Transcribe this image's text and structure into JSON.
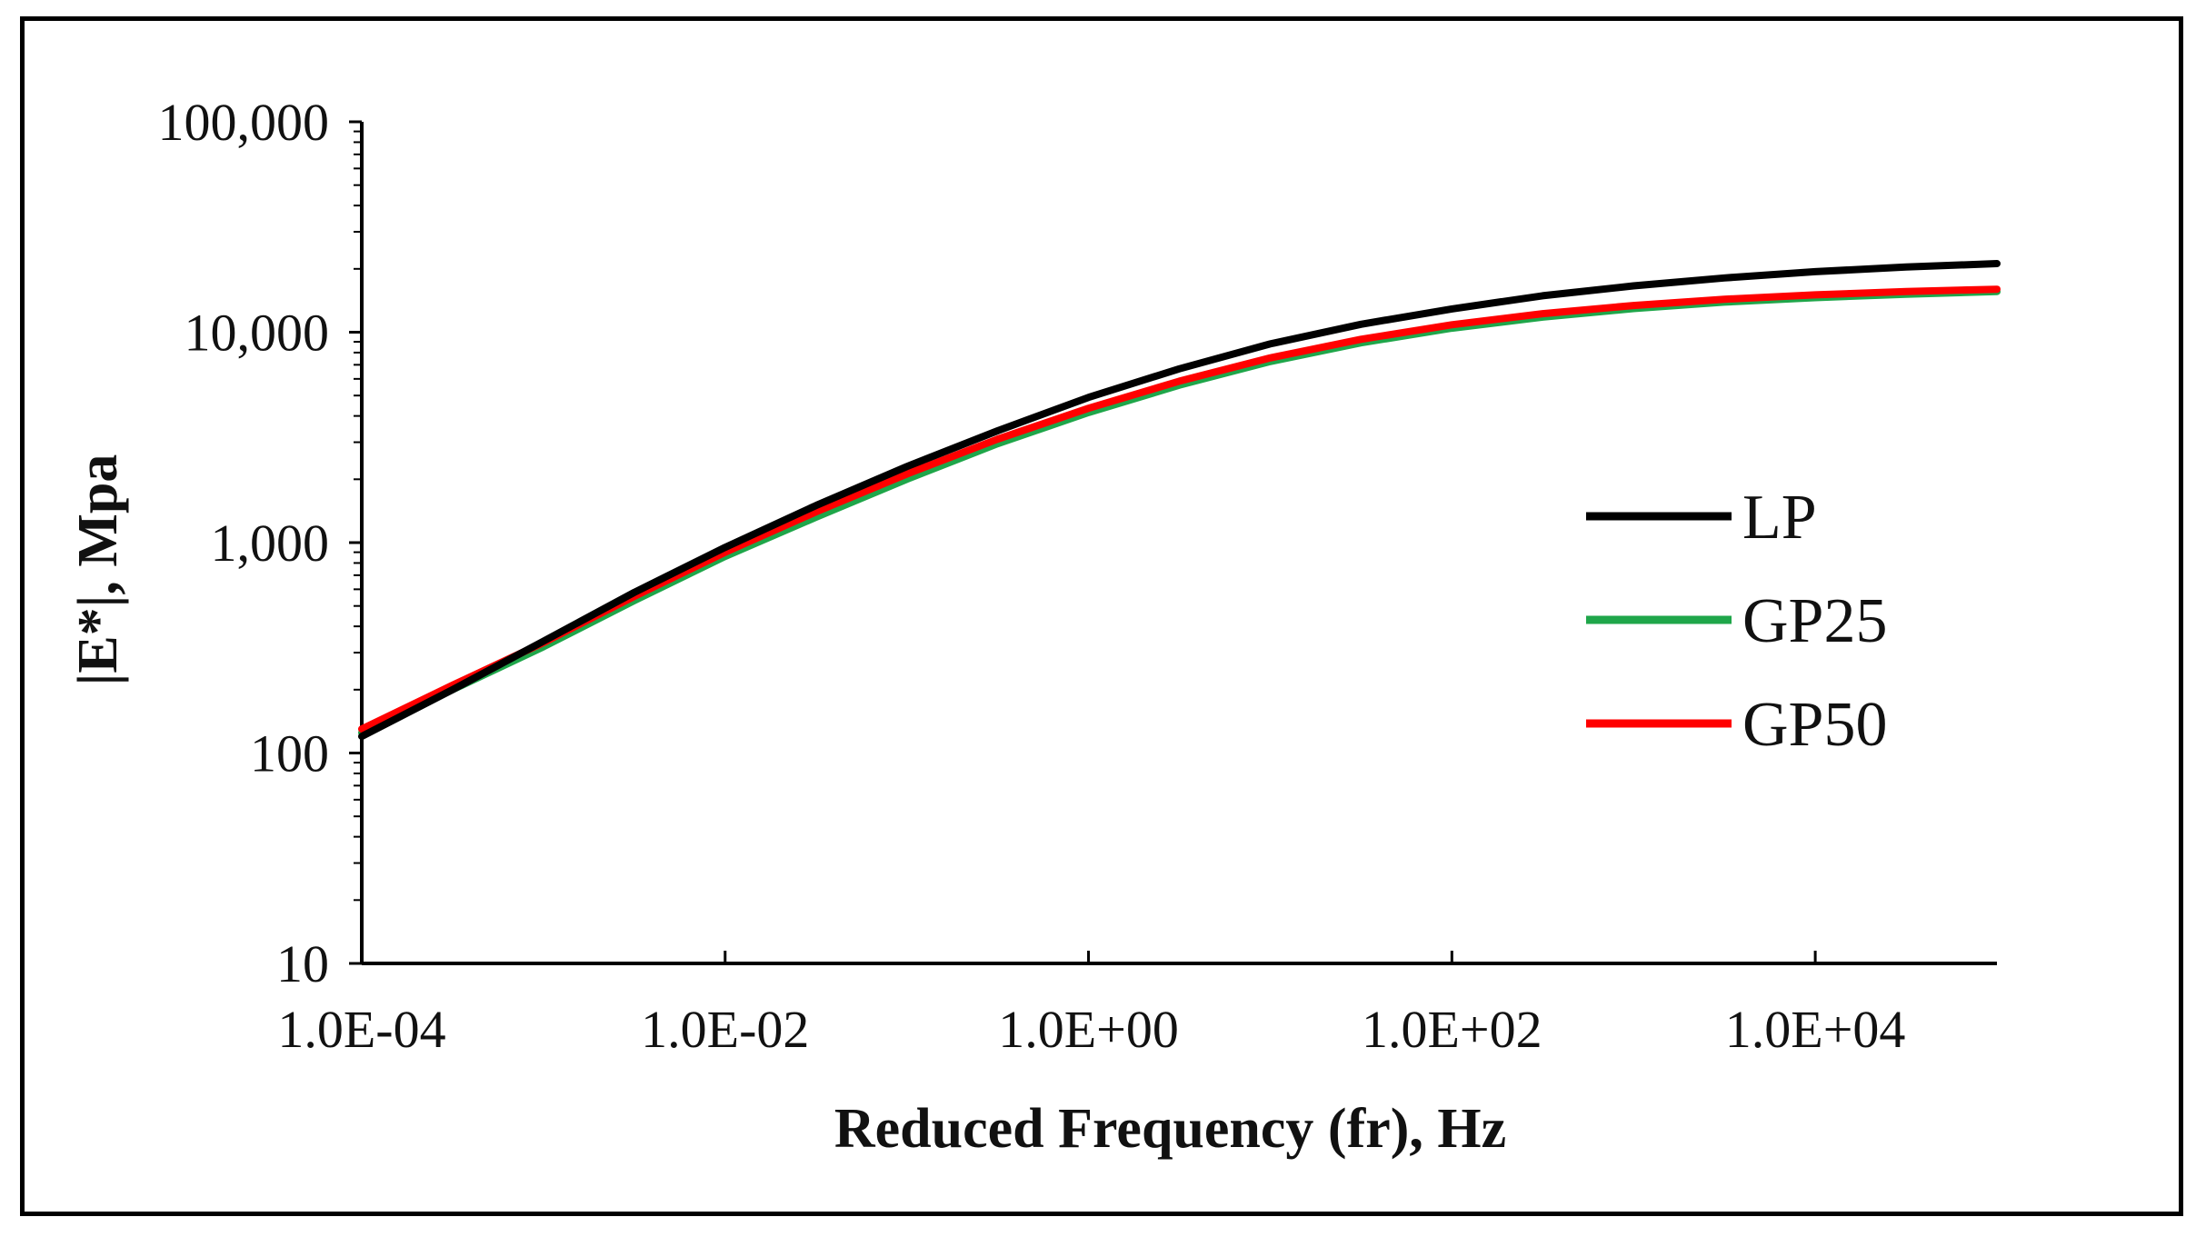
{
  "chart_data": {
    "type": "line",
    "title": "",
    "xlabel": "Reduced Frequency (fr), Hz",
    "ylabel": "|E*|, Mpa",
    "xscale": "log",
    "yscale": "log",
    "xlim": [
      0.0001,
      100000
    ],
    "ylim": [
      10,
      100000
    ],
    "xticks": [
      0.0001,
      0.01,
      1,
      100,
      10000
    ],
    "xtick_labels": [
      "1.0E-04",
      "1.0E-02",
      "1.0E+00",
      "1.0E+02",
      "1.0E+04"
    ],
    "yticks": [
      10,
      100,
      1000,
      10000,
      100000
    ],
    "ytick_labels": [
      "10",
      "100",
      "1,000",
      "10,000",
      "100,000"
    ],
    "grid": false,
    "legend_position": "right",
    "series": [
      {
        "name": "LP",
        "color": "#000000",
        "x": [
          0.0001,
          0.000316,
          0.001,
          0.00316,
          0.01,
          0.0316,
          0.1,
          0.316,
          1,
          3.16,
          10,
          31.6,
          100,
          316,
          1000,
          3160,
          10000,
          31600,
          100000
        ],
        "y": [
          120,
          200,
          340,
          580,
          950,
          1500,
          2300,
          3400,
          4900,
          6700,
          8800,
          10900,
          12900,
          14900,
          16600,
          18100,
          19400,
          20400,
          21200
        ]
      },
      {
        "name": "GP25",
        "color": "#1fa64a",
        "x": [
          0.0001,
          0.000316,
          0.001,
          0.00316,
          0.01,
          0.0316,
          0.1,
          0.316,
          1,
          3.16,
          10,
          31.6,
          100,
          316,
          1000,
          3160,
          10000,
          31600,
          100000
        ],
        "y": [
          125,
          200,
          320,
          530,
          860,
          1320,
          2000,
          2950,
          4150,
          5600,
          7250,
          8900,
          10450,
          11800,
          12950,
          13900,
          14600,
          15150,
          15600
        ]
      },
      {
        "name": "GP50",
        "color": "#ff0000",
        "x": [
          0.0001,
          0.000316,
          0.001,
          0.00316,
          0.01,
          0.0316,
          0.1,
          0.316,
          1,
          3.16,
          10,
          31.6,
          100,
          316,
          1000,
          3160,
          10000,
          31600,
          100000
        ],
        "y": [
          130,
          210,
          335,
          555,
          900,
          1400,
          2120,
          3100,
          4350,
          5850,
          7550,
          9250,
          10850,
          12250,
          13400,
          14350,
          15050,
          15600,
          16000
        ]
      }
    ]
  }
}
